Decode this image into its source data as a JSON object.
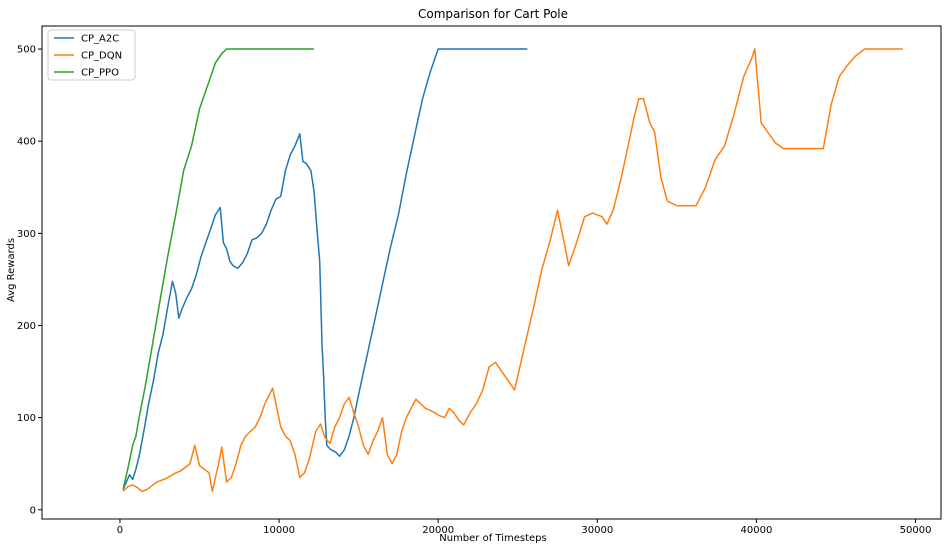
{
  "chart_data": {
    "type": "line",
    "title": "Comparison for Cart Pole",
    "xlabel": "Number of Timesteps",
    "ylabel": "Avg Rewards",
    "xlim": [
      -4900,
      51600
    ],
    "ylim": [
      -10,
      525
    ],
    "xticks": [
      0,
      10000,
      20000,
      30000,
      40000,
      50000
    ],
    "xtick_labels": [
      "0",
      "10000",
      "20000",
      "30000",
      "40000",
      "50000"
    ],
    "yticks": [
      0,
      100,
      200,
      300,
      400,
      500
    ],
    "ytick_labels": [
      "0",
      "100",
      "200",
      "300",
      "400",
      "500"
    ],
    "grid": false,
    "legend": "upper-left",
    "series": [
      {
        "name": "CP_A2C",
        "color": "#1f77b4",
        "x": [
          200,
          400,
          600,
          800,
          1000,
          1200,
          1500,
          1800,
          2100,
          2400,
          2700,
          3000,
          3300,
          3500,
          3700,
          3900,
          4200,
          4500,
          4800,
          5100,
          5400,
          5700,
          6000,
          6300,
          6500,
          6700,
          6900,
          7100,
          7400,
          7700,
          8000,
          8300,
          8600,
          8900,
          9200,
          9500,
          9800,
          10100,
          10400,
          10700,
          11000,
          11300,
          11500,
          11700,
          12000,
          12200,
          12400,
          12550,
          12700,
          12800,
          12900,
          13000,
          13200,
          13400,
          13600,
          13800,
          14100,
          14400,
          14700,
          15000,
          15500,
          16000,
          16500,
          17000,
          17500,
          18000,
          18500,
          19000,
          19500,
          20000,
          20200,
          20500,
          21000,
          22000,
          23000,
          24000,
          25000,
          25600
        ],
        "y": [
          22,
          30,
          38,
          33,
          44,
          58,
          85,
          115,
          140,
          170,
          190,
          220,
          248,
          235,
          208,
          218,
          230,
          240,
          255,
          275,
          290,
          305,
          320,
          328,
          290,
          283,
          270,
          265,
          262,
          268,
          278,
          293,
          295,
          300,
          310,
          325,
          337,
          340,
          368,
          385,
          395,
          408,
          378,
          376,
          368,
          345,
          300,
          270,
          180,
          145,
          100,
          70,
          66,
          64,
          62,
          58,
          65,
          80,
          100,
          125,
          165,
          205,
          245,
          285,
          320,
          365,
          405,
          445,
          475,
          500,
          500,
          500,
          500,
          500,
          500,
          500,
          500,
          500
        ]
      },
      {
        "name": "CP_DQN",
        "color": "#ff7f0e",
        "x": [
          200,
          500,
          800,
          1100,
          1400,
          1700,
          2000,
          2300,
          2600,
          2900,
          3200,
          3500,
          3800,
          4100,
          4400,
          4700,
          5000,
          5300,
          5600,
          5800,
          6000,
          6200,
          6400,
          6700,
          7000,
          7300,
          7600,
          7900,
          8200,
          8500,
          8800,
          9100,
          9400,
          9600,
          9800,
          10100,
          10400,
          10700,
          11000,
          11300,
          11600,
          11900,
          12100,
          12300,
          12600,
          12900,
          13200,
          13500,
          13800,
          14100,
          14400,
          14700,
          15000,
          15300,
          15600,
          15900,
          16200,
          16500,
          16800,
          17100,
          17400,
          17700,
          18000,
          18300,
          18600,
          18900,
          19200,
          19500,
          19800,
          20100,
          20400,
          20700,
          21000,
          21300,
          21600,
          22000,
          22400,
          22800,
          23200,
          23600,
          24000,
          24400,
          24800,
          25200,
          25600,
          26000,
          26500,
          27000,
          27500,
          27800,
          28200,
          28700,
          29200,
          29700,
          30000,
          30300,
          30600,
          31000,
          31500,
          32000,
          32300,
          32600,
          32900,
          33300,
          33600,
          34000,
          34400,
          35000,
          35600,
          36200,
          36800,
          37400,
          38000,
          38600,
          39200,
          39700,
          39900,
          40300,
          40700,
          41200,
          41700,
          42300,
          43000,
          43700,
          44200,
          44700,
          45200,
          45700,
          46200,
          46800,
          47500,
          48200,
          49200
        ],
        "y": [
          20,
          25,
          27,
          24,
          20,
          22,
          26,
          30,
          32,
          34,
          37,
          40,
          42,
          46,
          50,
          70,
          48,
          44,
          40,
          20,
          35,
          50,
          68,
          30,
          35,
          50,
          70,
          80,
          85,
          90,
          100,
          115,
          125,
          132,
          115,
          90,
          80,
          75,
          60,
          35,
          40,
          55,
          70,
          85,
          93,
          78,
          72,
          90,
          100,
          115,
          122,
          105,
          90,
          70,
          60,
          75,
          85,
          100,
          60,
          50,
          60,
          85,
          100,
          110,
          120,
          115,
          110,
          108,
          105,
          102,
          100,
          110,
          105,
          97,
          92,
          105,
          115,
          130,
          155,
          160,
          150,
          140,
          130,
          160,
          190,
          220,
          260,
          290,
          325,
          300,
          265,
          290,
          318,
          322,
          320,
          318,
          310,
          325,
          360,
          400,
          425,
          446,
          446,
          420,
          410,
          360,
          335,
          330,
          330,
          330,
          350,
          380,
          395,
          430,
          470,
          490,
          500,
          420,
          410,
          398,
          392,
          392,
          392,
          392,
          392,
          440,
          470,
          482,
          492,
          500,
          500,
          500,
          500
        ]
      },
      {
        "name": "CP_PPO",
        "color": "#2ca02c",
        "x": [
          200,
          500,
          800,
          1000,
          1200,
          1600,
          2000,
          2500,
          3000,
          3500,
          4000,
          4500,
          5000,
          5500,
          6000,
          6400,
          6700,
          7000,
          7500,
          8000,
          9000,
          10000,
          11000,
          12200
        ],
        "y": [
          22,
          45,
          70,
          80,
          100,
          135,
          175,
          225,
          275,
          320,
          368,
          395,
          435,
          460,
          485,
          495,
          500,
          500,
          500,
          500,
          500,
          500,
          500,
          500
        ]
      }
    ]
  }
}
